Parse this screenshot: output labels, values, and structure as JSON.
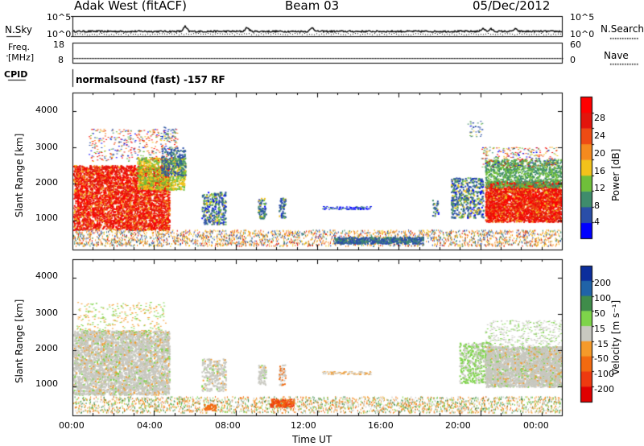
{
  "header": {
    "station": "Adak West (fitACF)",
    "beam": "Beam 03",
    "date": "05/Dec/2012"
  },
  "status_panels": {
    "nsky_label": "N.Sky",
    "nsearch_label": "N.Search",
    "freq_label_line1": "Freq.",
    "freq_label_line2": "[MHz]",
    "nave_label": "Nave",
    "cpid_label": "CPID",
    "cpid_text": "normalsound (fast) -157 RF",
    "noise_ticks_left": [
      "10^5",
      "10^0"
    ],
    "noise_ticks_right": [
      "10^5",
      "10^0"
    ],
    "freq_ticks": [
      "18",
      "8"
    ],
    "nave_ticks": [
      "60",
      "0"
    ]
  },
  "chart_data": [
    {
      "type": "heatmap",
      "title": "",
      "xlabel": "",
      "ylabel": "Slant Range [km]",
      "yticks": [
        "1000",
        "2000",
        "3000",
        "4000"
      ],
      "ylim": [
        200,
        4500
      ],
      "colorbar": {
        "label": "Power [dB]",
        "ticks": [
          "4",
          "8",
          "12",
          "16",
          "20",
          "24",
          "28"
        ],
        "colors": [
          "#0000ff",
          "#2a4ea8",
          "#3f8c6c",
          "#6fbf3a",
          "#f2c21b",
          "#f58a1e",
          "#ee4b14",
          "#e2150c",
          "#ff0000"
        ]
      }
    },
    {
      "type": "heatmap",
      "title": "",
      "xlabel": "Time UT",
      "ylabel": "Slant Range [km]",
      "yticks": [
        "1000",
        "2000",
        "3000",
        "4000"
      ],
      "ylim": [
        200,
        4500
      ],
      "xticks": [
        "00:00",
        "04:00",
        "08:00",
        "12:00",
        "16:00",
        "20:00",
        "00:00"
      ],
      "colorbar": {
        "label": "Velocity [m s⁻¹]",
        "ticks": [
          "200",
          "100",
          "50",
          "15",
          "-15",
          "-50",
          "-100",
          "-200"
        ],
        "colors": [
          "#0c2e9c",
          "#2063a8",
          "#3f8c4a",
          "#7ed44a",
          "#c8c8c0",
          "#f59a2a",
          "#f26a10",
          "#ee3a10",
          "#e00000"
        ]
      }
    }
  ]
}
